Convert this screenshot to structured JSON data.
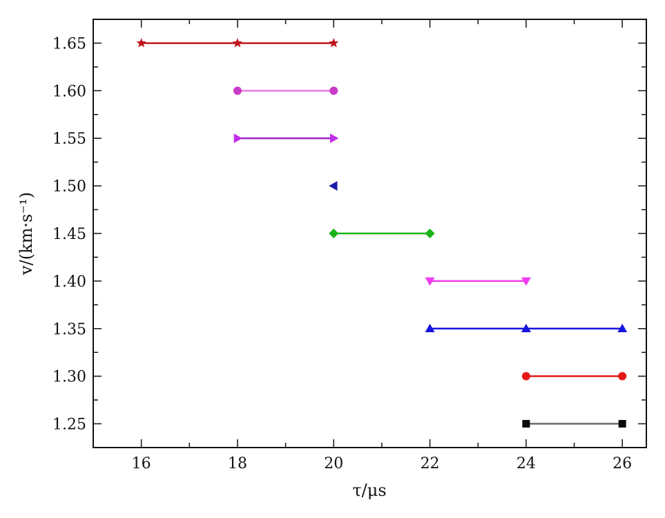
{
  "chart_data": {
    "type": "line",
    "title": "",
    "xlabel": "τ/μs",
    "ylabel": "v/(km·s⁻¹)",
    "xlim": [
      15,
      26.5
    ],
    "ylim": [
      1.225,
      1.675
    ],
    "x_ticks": [
      {
        "value": 16,
        "label": "16"
      },
      {
        "value": 18,
        "label": "18"
      },
      {
        "value": 20,
        "label": "20"
      },
      {
        "value": 22,
        "label": "22"
      },
      {
        "value": 24,
        "label": "24"
      },
      {
        "value": 26,
        "label": "26"
      }
    ],
    "y_ticks": [
      {
        "value": 1.25,
        "label": "1.25"
      },
      {
        "value": 1.3,
        "label": "1.30"
      },
      {
        "value": 1.35,
        "label": "1.35"
      },
      {
        "value": 1.4,
        "label": "1.40"
      },
      {
        "value": 1.45,
        "label": "1.45"
      },
      {
        "value": 1.5,
        "label": "1.50"
      },
      {
        "value": 1.55,
        "label": "1.55"
      },
      {
        "value": 1.6,
        "label": "1.60"
      },
      {
        "value": 1.65,
        "label": "1.65"
      }
    ],
    "grid": false,
    "legend": "none",
    "series": [
      {
        "marker": "star",
        "color": "#c0141c",
        "points": [
          [
            16,
            1.65
          ],
          [
            18,
            1.65
          ],
          [
            20,
            1.65
          ]
        ]
      },
      {
        "marker": "circle",
        "color": "#c83cc8",
        "line_color": "#e27ae2",
        "points": [
          [
            18,
            1.6
          ],
          [
            20,
            1.6
          ]
        ]
      },
      {
        "marker": "triangle-right",
        "color": "#c030e8",
        "line_color": "#9a28c8",
        "points": [
          [
            18,
            1.55
          ],
          [
            20,
            1.55
          ]
        ]
      },
      {
        "marker": "triangle-left",
        "color": "#1a1aa8",
        "points": [
          [
            20,
            1.5
          ]
        ]
      },
      {
        "marker": "diamond",
        "color": "#18b418",
        "points": [
          [
            20,
            1.45
          ],
          [
            22,
            1.45
          ]
        ]
      },
      {
        "marker": "triangle-down",
        "color": "#f03cf0",
        "points": [
          [
            22,
            1.4
          ],
          [
            24,
            1.4
          ]
        ]
      },
      {
        "marker": "triangle-up",
        "color": "#1414e0",
        "points": [
          [
            22,
            1.35
          ],
          [
            24,
            1.35
          ],
          [
            26,
            1.35
          ]
        ]
      },
      {
        "marker": "circle",
        "color": "#e81818",
        "points": [
          [
            24,
            1.3
          ],
          [
            26,
            1.3
          ]
        ]
      },
      {
        "marker": "square",
        "color": "#0a0a0a",
        "line_color": "#6a6a6a",
        "points": [
          [
            24,
            1.25
          ],
          [
            26,
            1.25
          ]
        ]
      }
    ]
  }
}
